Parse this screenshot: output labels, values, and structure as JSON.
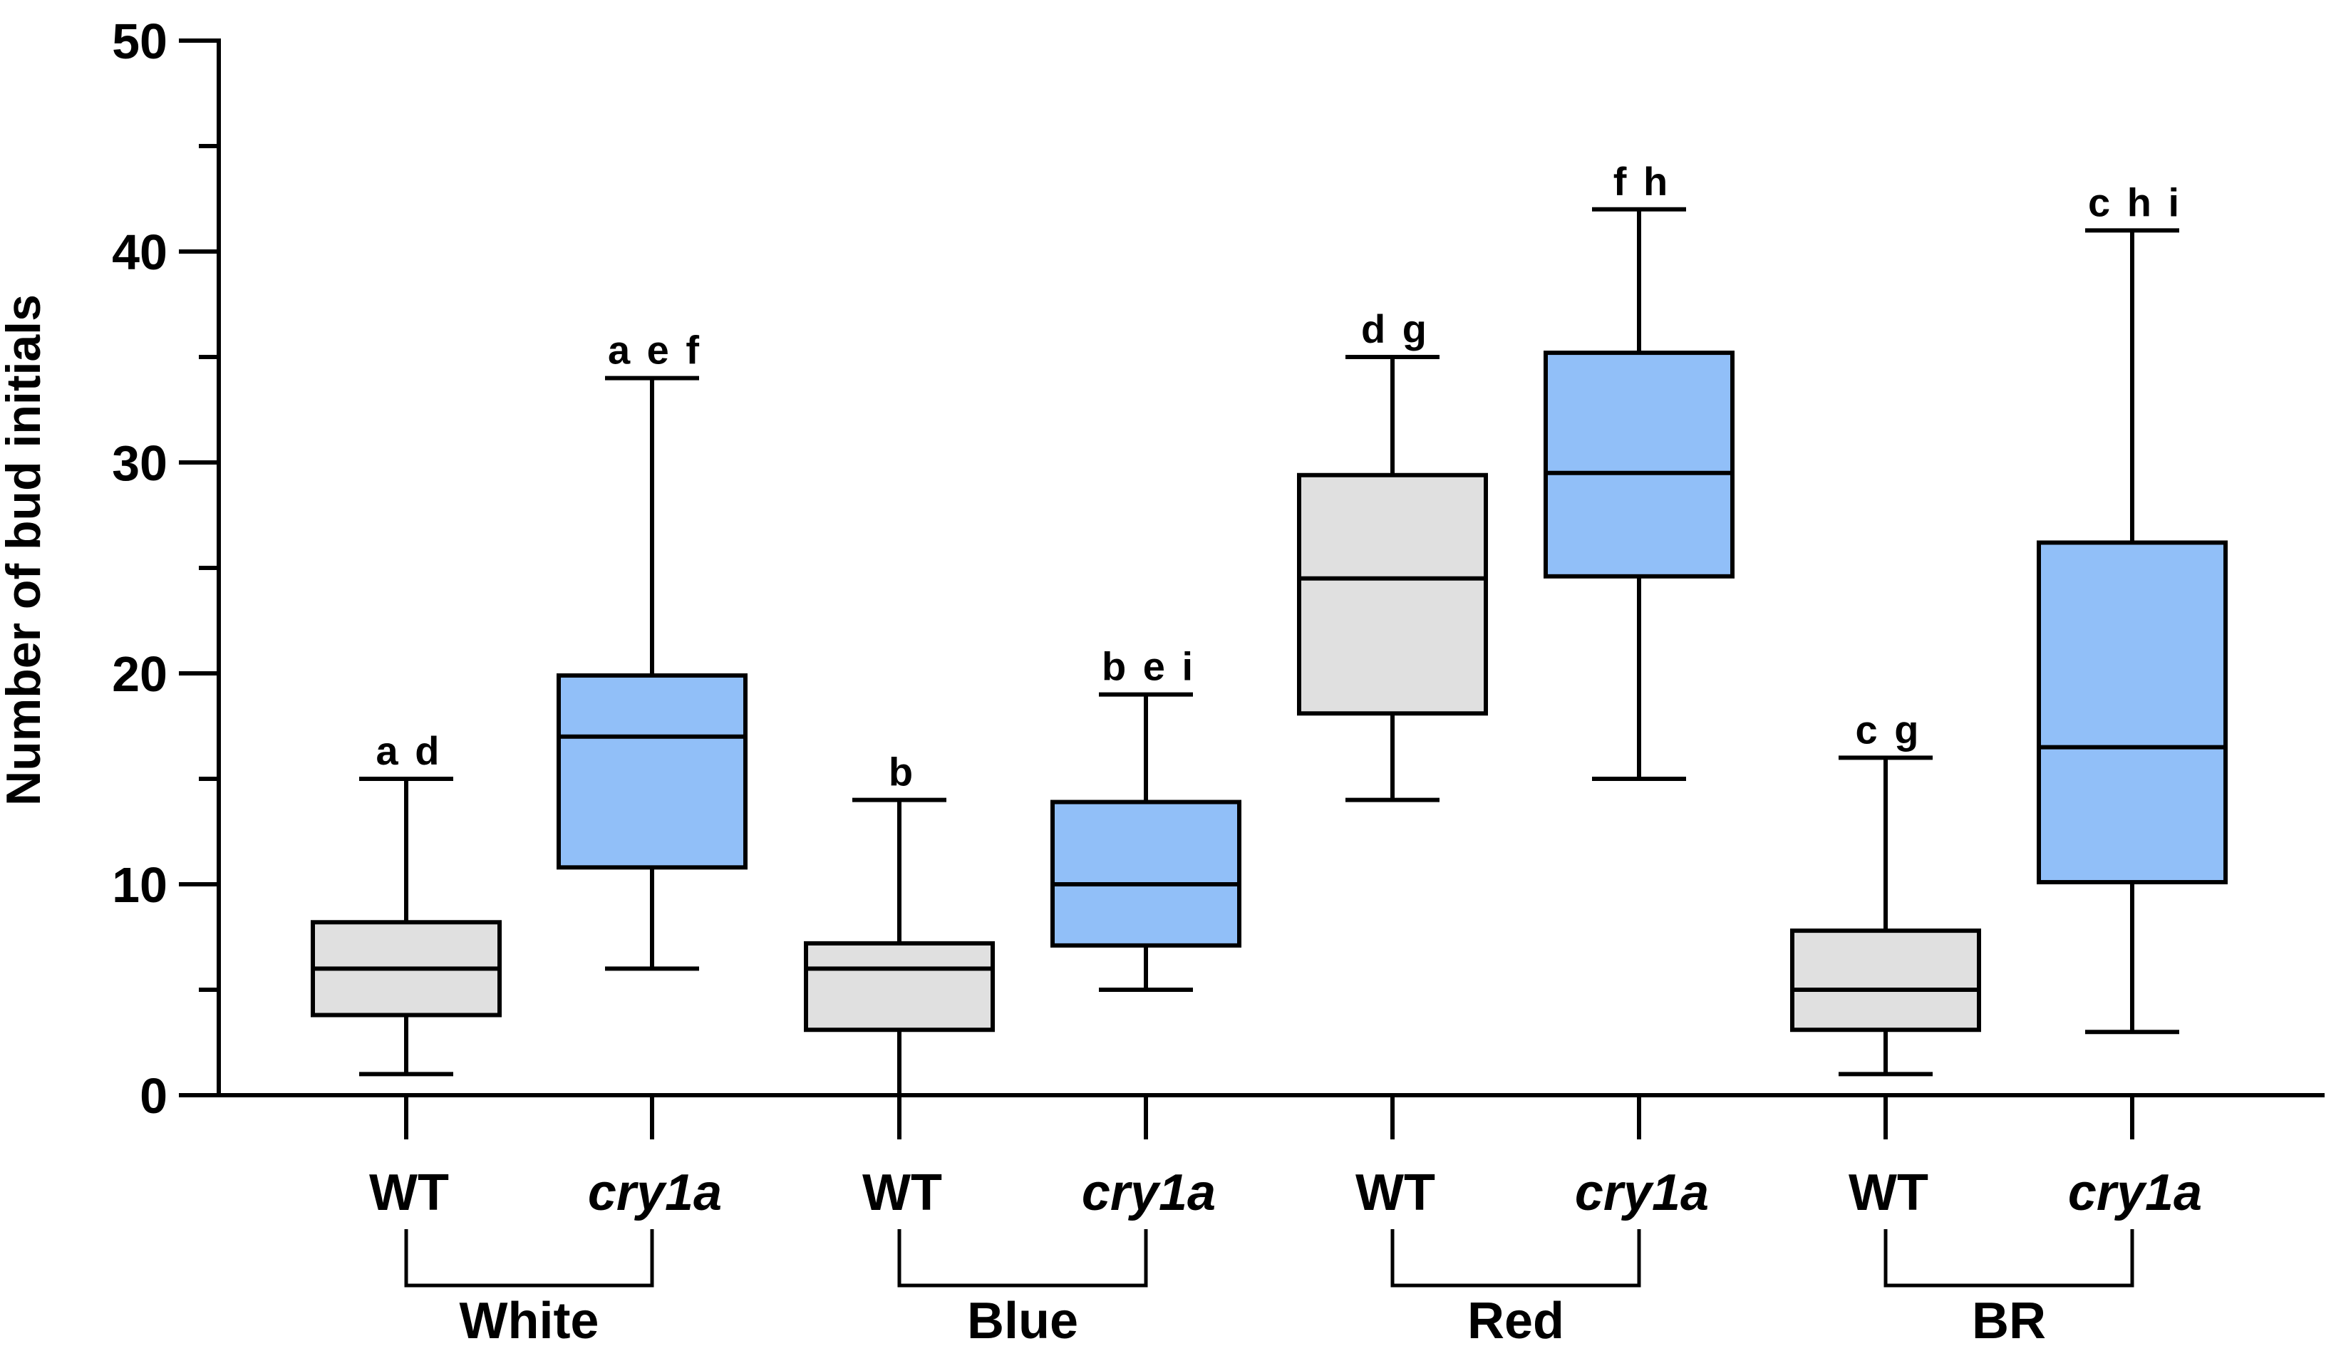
{
  "chart_data": {
    "type": "boxplot",
    "title": "",
    "xlabel": "",
    "ylabel": "Number of bud initials",
    "ylim": [
      0,
      50
    ],
    "y_major_ticks": [
      0,
      10,
      20,
      30,
      40,
      50
    ],
    "y_minor_step": 5,
    "colors": {
      "WT": "#e0e0e0",
      "cry1a": "#91bff8",
      "stroke": "#000000"
    },
    "groups": [
      {
        "name": "White",
        "boxes": [
          {
            "genotype": "WT",
            "italic": false,
            "min": 1,
            "q1": 3.8,
            "median": 6,
            "q3": 8.2,
            "max": 15,
            "sig": "a d"
          },
          {
            "genotype": "cry1a",
            "italic": true,
            "min": 6,
            "q1": 10.8,
            "median": 17,
            "q3": 19.9,
            "max": 34,
            "sig": "a e f"
          }
        ]
      },
      {
        "name": "Blue",
        "boxes": [
          {
            "genotype": "WT",
            "italic": false,
            "min": 0,
            "q1": 3.1,
            "median": 6,
            "q3": 7.2,
            "max": 14,
            "sig": "b"
          },
          {
            "genotype": "cry1a",
            "italic": true,
            "min": 5,
            "q1": 7.1,
            "median": 10,
            "q3": 13.9,
            "max": 19,
            "sig": "b e i"
          }
        ]
      },
      {
        "name": "Red",
        "boxes": [
          {
            "genotype": "WT",
            "italic": false,
            "min": 14,
            "q1": 18.1,
            "median": 24.5,
            "q3": 29.4,
            "max": 35,
            "sig": "d g"
          },
          {
            "genotype": "cry1a",
            "italic": true,
            "min": 15,
            "q1": 24.6,
            "median": 29.5,
            "q3": 35.2,
            "max": 42,
            "sig": "f h"
          }
        ]
      },
      {
        "name": "BR",
        "boxes": [
          {
            "genotype": "WT",
            "italic": false,
            "min": 1,
            "q1": 3.1,
            "median": 5,
            "q3": 7.8,
            "max": 16,
            "sig": "c g"
          },
          {
            "genotype": "cry1a",
            "italic": true,
            "min": 3,
            "q1": 10.1,
            "median": 16.5,
            "q3": 26.2,
            "max": 41,
            "sig": "c h i"
          }
        ]
      }
    ]
  }
}
